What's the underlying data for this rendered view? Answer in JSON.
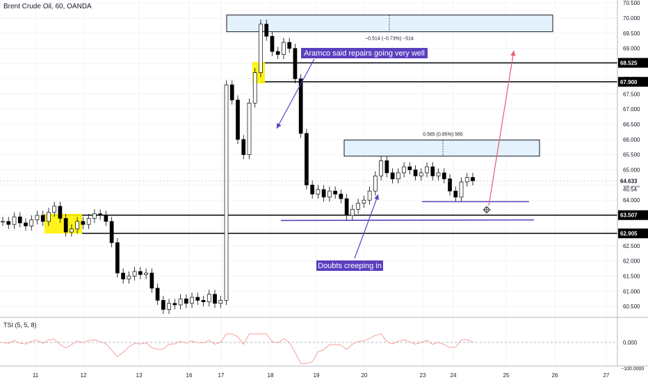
{
  "header": {
    "symbol_title": "Brent Crude Oil, 60, OANDA"
  },
  "indicator": {
    "title": "TSI (5, 5, 8)"
  },
  "annotations": {
    "aramco": "Aramco said repairs going very well",
    "doubts": "Doubts creeping in",
    "measure_top": "−0.514 (−0.73%) −514",
    "measure_mid": "0.565 (0.85%) 565"
  },
  "price_tags": {
    "current": "64.633",
    "countdown": "45:54",
    "levels": [
      "68.525",
      "67.900",
      "63.507",
      "62.905"
    ]
  },
  "colors": {
    "accent": "#5b3fbf",
    "zone": "#fff200",
    "rect_fill": "#e3f2fd",
    "tsi_line": "#f4a09a",
    "red_arrow": "#e65a6e"
  },
  "chart_data": {
    "type": "candlestick",
    "title": "Brent Crude Oil, 60, OANDA",
    "xlabel": "",
    "ylabel": "",
    "x_ticks": [
      "11",
      "12",
      "13",
      "16",
      "17",
      "18",
      "19",
      "20",
      "23",
      "24",
      "25",
      "26",
      "27"
    ],
    "y_ticks": [
      "70.500",
      "70.000",
      "69.500",
      "69.000",
      "68.500",
      "68.000",
      "67.500",
      "67.000",
      "66.500",
      "66.000",
      "65.500",
      "65.000",
      "64.500",
      "64.000",
      "63.500",
      "63.000",
      "62.500",
      "62.000",
      "61.500",
      "61.000",
      "60.500"
    ],
    "ylim": [
      60.2,
      70.7
    ],
    "horizontal_levels": [
      68.525,
      67.9,
      63.507,
      62.905
    ],
    "support_lines": [
      {
        "start": 63.35,
        "end": 63.35
      },
      {
        "start": 63.95,
        "end": 63.95
      }
    ],
    "rectangles": [
      {
        "top": 70.1,
        "bottom": 69.55
      },
      {
        "top": 65.98,
        "bottom": 65.45
      }
    ],
    "last_price": 64.633,
    "series_close": [
      63.3,
      63.2,
      63.45,
      63.25,
      63.15,
      63.35,
      63.5,
      63.3,
      63.6,
      63.8,
      63.4,
      62.95,
      63.05,
      63.3,
      63.2,
      63.4,
      63.55,
      63.5,
      63.3,
      62.6,
      61.6,
      61.4,
      61.5,
      61.65,
      61.55,
      61.6,
      61.1,
      60.7,
      60.4,
      60.6,
      60.55,
      60.75,
      60.6,
      60.8,
      60.7,
      60.65,
      60.9,
      60.6,
      60.7,
      67.8,
      67.3,
      66.0,
      65.5,
      67.2,
      68.2,
      69.8,
      69.4,
      68.9,
      68.8,
      69.2,
      69.0,
      68.0,
      66.2,
      64.5,
      64.2,
      64.35,
      64.1,
      64.3,
      64.2,
      64.05,
      63.5,
      63.7,
      63.9,
      64.0,
      64.3,
      64.8,
      65.3,
      64.9,
      64.7,
      64.9,
      65.1,
      65.0,
      64.8,
      64.9,
      65.1,
      64.8,
      64.9,
      64.7,
      64.3,
      64.1,
      64.6,
      64.75,
      64.633
    ],
    "tsi": {
      "ylim": [
        -100,
        40
      ],
      "y_ticks": [
        "0.000",
        "−100.0000"
      ],
      "zero_line": 0
    }
  }
}
